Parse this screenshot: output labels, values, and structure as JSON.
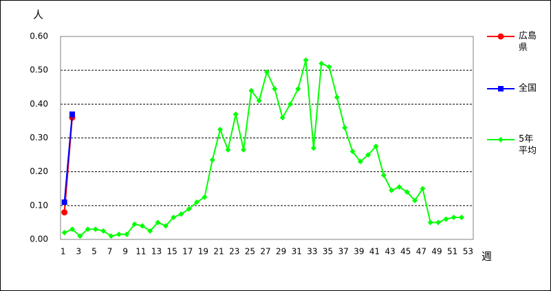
{
  "chart_data": {
    "type": "line",
    "y_label": "人",
    "x_label": "週",
    "categories": [
      "1",
      null,
      "3",
      null,
      "5",
      null,
      "7",
      null,
      "9",
      null,
      "11",
      null,
      "13",
      null,
      "15",
      null,
      "17",
      null,
      "19",
      null,
      "21",
      null,
      "23",
      null,
      "25",
      null,
      "27",
      null,
      "29",
      null,
      "31",
      null,
      "33",
      null,
      "35",
      null,
      "37",
      null,
      "39",
      null,
      "41",
      null,
      "43",
      null,
      "45",
      null,
      "47",
      null,
      "49",
      null,
      "51",
      null,
      "53"
    ],
    "series": [
      {
        "name": "広島県",
        "color": "#ff0000",
        "marker": "circle",
        "values": [
          0.08,
          0.36,
          null,
          null,
          null,
          null,
          null,
          null,
          null,
          null,
          null,
          null,
          null,
          null,
          null,
          null,
          null,
          null,
          null,
          null,
          null,
          null,
          null,
          null,
          null,
          null,
          null,
          null,
          null,
          null,
          null,
          null,
          null,
          null,
          null,
          null,
          null,
          null,
          null,
          null,
          null,
          null,
          null,
          null,
          null,
          null,
          null,
          null,
          null,
          null,
          null,
          null,
          null
        ]
      },
      {
        "name": "全国",
        "color": "#0000ff",
        "marker": "square",
        "values": [
          0.11,
          0.37,
          null,
          null,
          null,
          null,
          null,
          null,
          null,
          null,
          null,
          null,
          null,
          null,
          null,
          null,
          null,
          null,
          null,
          null,
          null,
          null,
          null,
          null,
          null,
          null,
          null,
          null,
          null,
          null,
          null,
          null,
          null,
          null,
          null,
          null,
          null,
          null,
          null,
          null,
          null,
          null,
          null,
          null,
          null,
          null,
          null,
          null,
          null,
          null,
          null,
          null,
          null
        ]
      },
      {
        "name": "5年平均",
        "color": "#00ff00",
        "marker": "diamond",
        "values": [
          0.02,
          0.03,
          0.01,
          0.03,
          0.03,
          0.025,
          0.01,
          0.015,
          0.015,
          0.045,
          0.04,
          0.025,
          0.05,
          0.04,
          0.065,
          0.075,
          0.09,
          0.11,
          0.125,
          0.235,
          0.325,
          0.265,
          0.37,
          0.265,
          0.44,
          0.41,
          0.495,
          0.445,
          0.36,
          0.4,
          0.445,
          0.53,
          0.27,
          0.52,
          0.51,
          0.42,
          0.33,
          0.26,
          0.23,
          0.25,
          0.275,
          0.19,
          0.145,
          0.155,
          0.14,
          0.115,
          0.15,
          0.05,
          0.05,
          0.06,
          0.065,
          0.065,
          null
        ]
      }
    ],
    "ylim": [
      0,
      0.6
    ],
    "yticks": [
      {
        "value": 0,
        "label": "0.00"
      },
      {
        "value": 0.1,
        "label": "0.10"
      },
      {
        "value": 0.2,
        "label": "0.20"
      },
      {
        "value": 0.3,
        "label": "0.30"
      },
      {
        "value": 0.4,
        "label": "0.40"
      },
      {
        "value": 0.5,
        "label": "0.50"
      },
      {
        "value": 0.6,
        "label": "0.60"
      }
    ],
    "grid": true
  }
}
